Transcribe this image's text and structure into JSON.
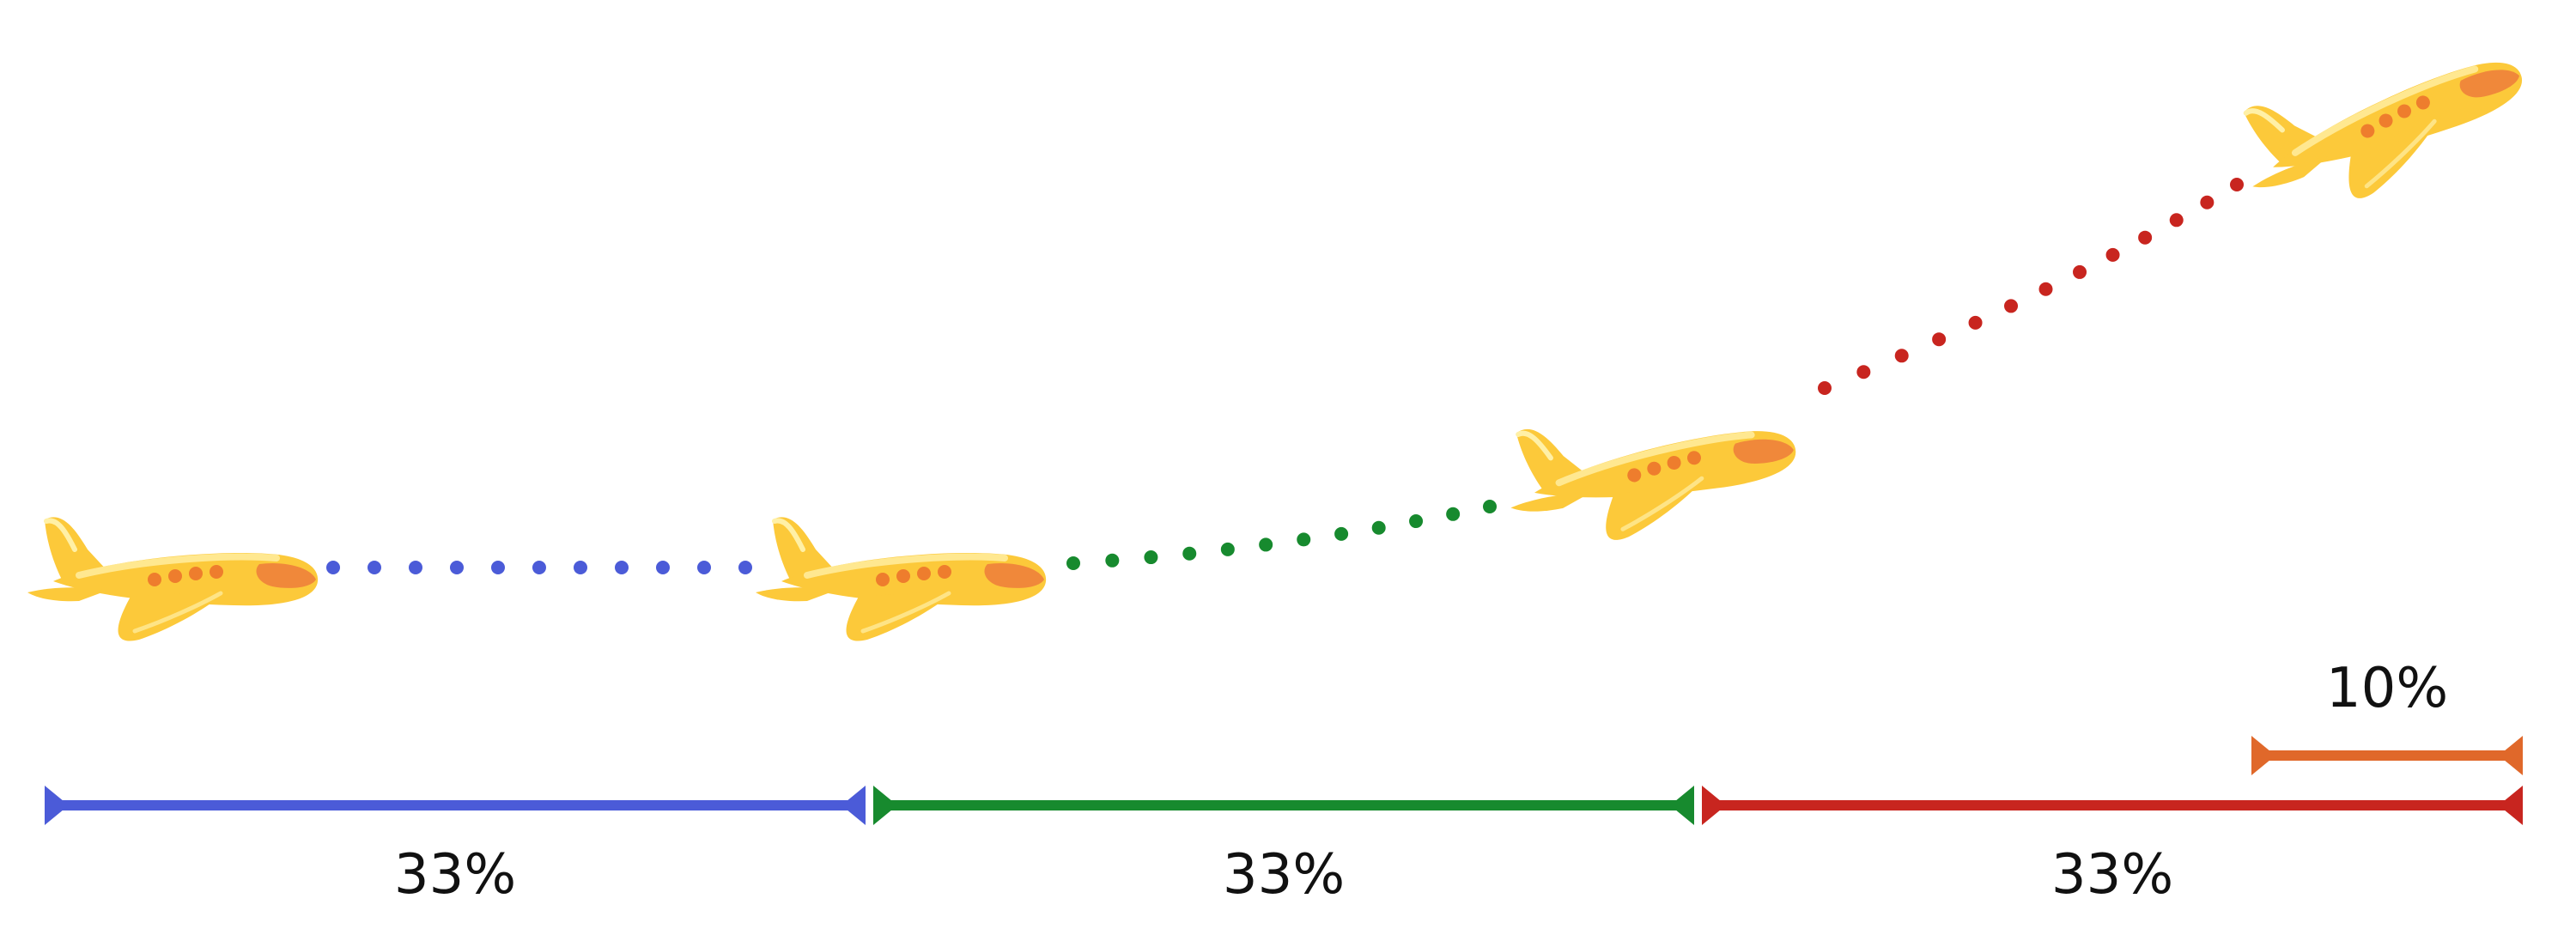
{
  "segments": [
    {
      "label": "33%",
      "color": "#4b5bd8",
      "path_style": "dotted-level"
    },
    {
      "label": "33%",
      "color": "#178a2e",
      "path_style": "dotted-gentle-climb"
    },
    {
      "label": "33%",
      "color": "#c8251f",
      "path_style": "dotted-steep-climb"
    }
  ],
  "final_segment": {
    "label": "10%",
    "color": "#e0682a"
  },
  "airplane": {
    "icon": "airplane-icon",
    "count": 4,
    "colors": {
      "body": "#fcc93a",
      "highlight": "#fff0a6",
      "window": "#ee7d2d",
      "cockpit": "#f0883a"
    }
  }
}
